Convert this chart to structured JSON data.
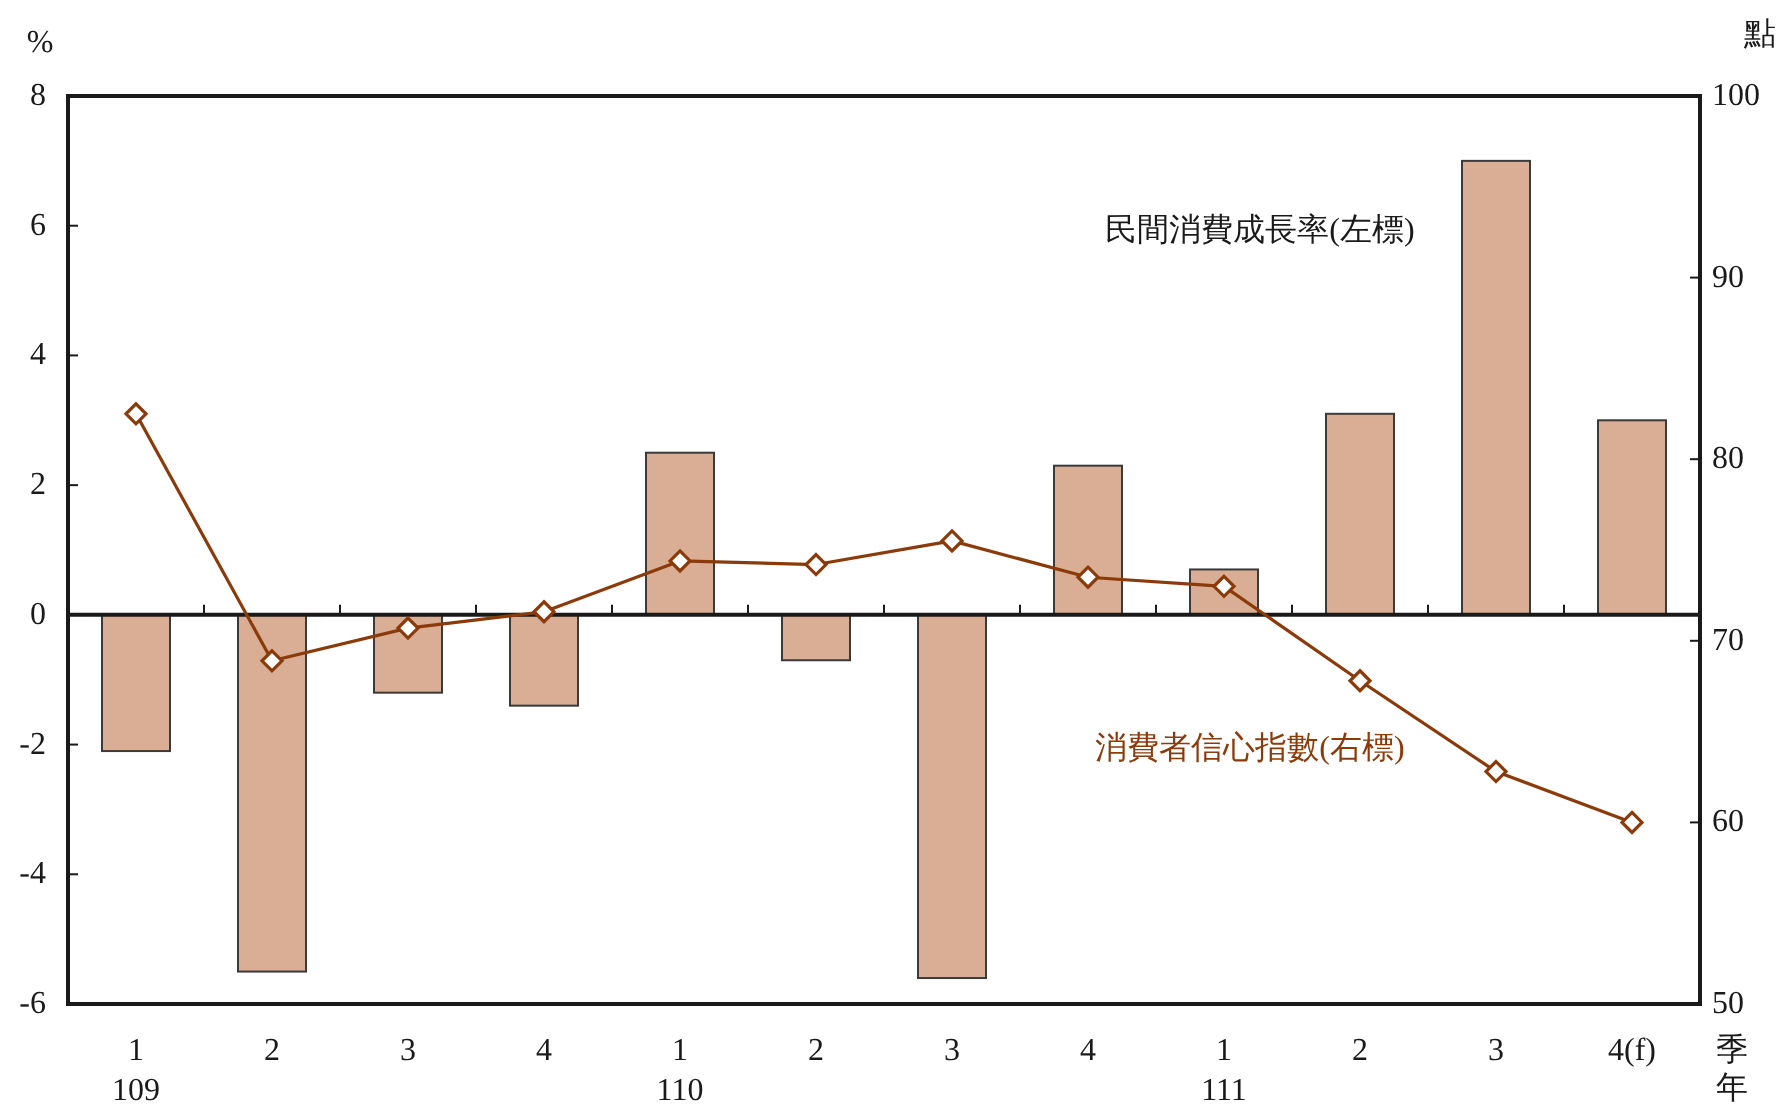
{
  "chart_data": {
    "type": "bar",
    "ylabel": "%",
    "y2label": "點",
    "xlabel": "季年",
    "categories": [
      "1\n109",
      "2",
      "3",
      "4",
      "1\n110",
      "2",
      "3",
      "4",
      "1\n111",
      "2",
      "3",
      "4(f)"
    ],
    "series": [
      {
        "name": "民間消費成長率(左標)",
        "color": "#d9ae95",
        "values": [
          -2.1,
          -5.5,
          -1.2,
          -1.4,
          2.5,
          -0.7,
          -5.6,
          2.3,
          0.7,
          3.1,
          7.0,
          3.0
        ]
      },
      {
        "name": "消費者信心指數(右標)",
        "type": "line",
        "axis": "y2",
        "color": "#8b3a0a",
        "values": [
          82.5,
          68.9,
          70.7,
          71.6,
          74.4,
          74.2,
          75.5,
          73.5,
          73.0,
          67.8,
          62.8,
          60.0
        ]
      }
    ],
    "marker": "diamond",
    "line_style": "solid",
    "ylim": [
      -6,
      8
    ],
    "yticks": [
      -6,
      -4,
      -2,
      0,
      2,
      4,
      6,
      8
    ],
    "y2lim": [
      50,
      100
    ],
    "y2ticks": [
      50,
      60,
      70,
      80,
      90,
      100
    ]
  }
}
